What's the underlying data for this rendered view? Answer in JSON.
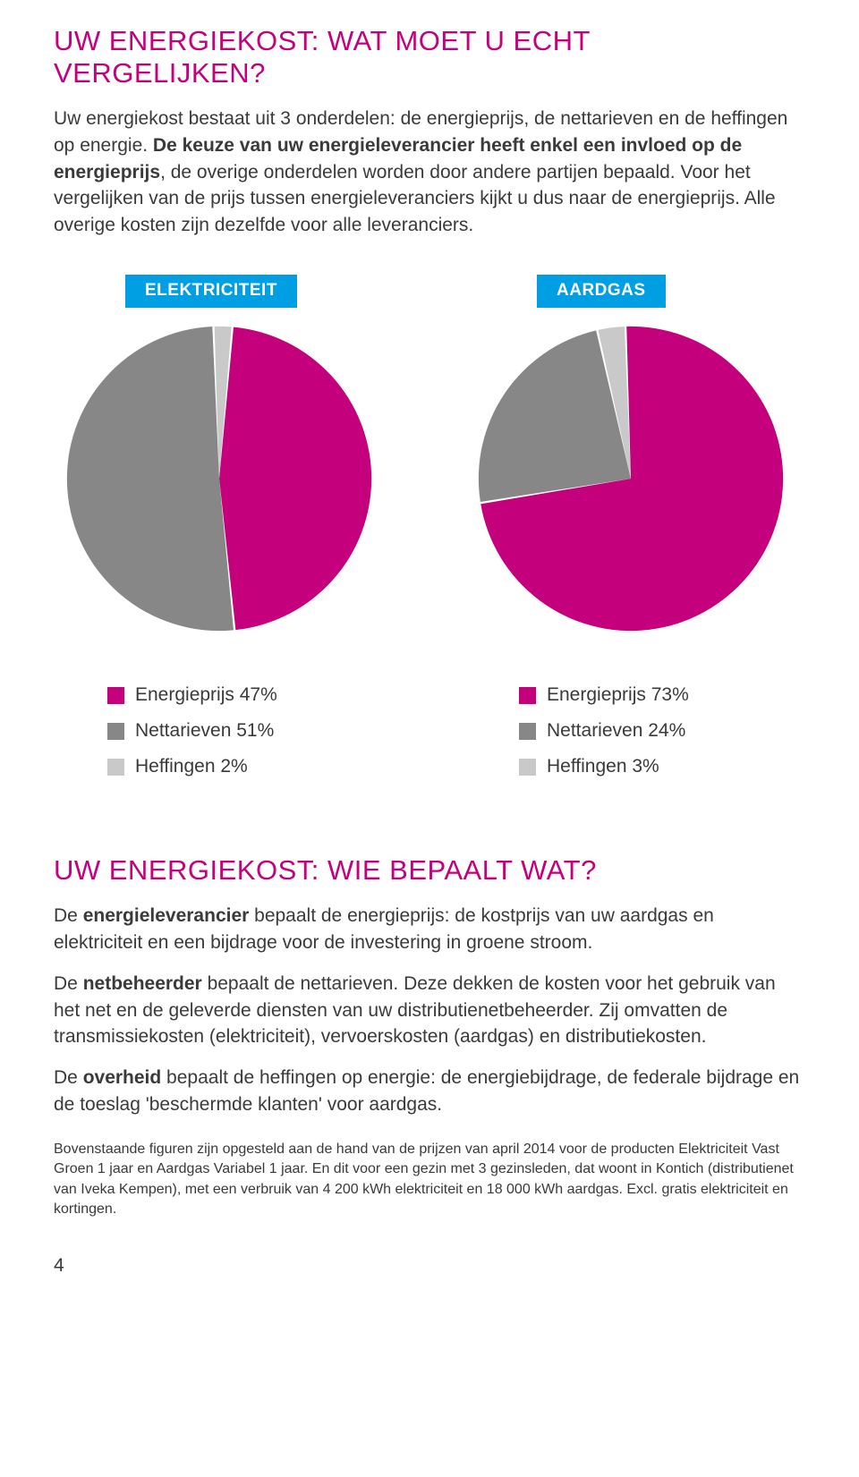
{
  "colors": {
    "magenta": "#c5007c",
    "grey_dark": "#878787",
    "grey_light": "#c9c9c9",
    "badge_blue": "#009fe3",
    "text": "#3a3a3a"
  },
  "section1": {
    "title": "UW ENERGIEKOST: WAT MOET U ECHT VERGELIJKEN?",
    "para_pre": "Uw energiekost bestaat uit 3 onderdelen: de energieprijs, de nettarieven en de heffingen op energie. ",
    "para_bold": "De keuze van uw energieleverancier heeft enkel een invloed op de energieprijs",
    "para_post": ", de overige onderdelen worden door andere partijen bepaald. Voor het vergelijken van de prijs tussen energieleveranciers kijkt u dus naar de energieprijs. Alle overige kosten zijn dezelfde voor alle leveranciers."
  },
  "charts": {
    "elek": {
      "badge": "ELEKTRICITEIT",
      "slices": [
        {
          "label": "Energieprijs 47%",
          "value": 47,
          "color": "#c5007c"
        },
        {
          "label": "Nettarieven 51%",
          "value": 51,
          "color": "#878787"
        },
        {
          "label": "Heffingen 2%",
          "value": 2,
          "color": "#c9c9c9"
        }
      ],
      "start_angle_deg": -85
    },
    "gas": {
      "badge": "AARDGAS",
      "slices": [
        {
          "label": "Energieprijs 73%",
          "value": 73,
          "color": "#c5007c"
        },
        {
          "label": "Nettarieven 24%",
          "value": 24,
          "color": "#878787"
        },
        {
          "label": "Heffingen 3%",
          "value": 3,
          "color": "#c9c9c9"
        }
      ],
      "start_angle_deg": -92
    },
    "radius": 175,
    "gap_deg": 0.8
  },
  "section2": {
    "title": "UW ENERGIEKOST: WIE BEPAALT WAT?",
    "p1_pre": "De ",
    "p1_bold": "energieleverancier",
    "p1_post": " bepaalt de energieprijs: de kostprijs van uw aardgas en elektriciteit en een bijdrage voor de investering in groene stroom.",
    "p2_pre": "De ",
    "p2_bold": "netbeheerder",
    "p2_post": " bepaalt de nettarieven. Deze dekken de kosten voor het gebruik van het net en de geleverde diensten van uw distributienetbeheerder. Zij omvatten de transmissiekosten (elektriciteit), vervoerskosten (aardgas) en distributiekosten.",
    "p3_pre": "De ",
    "p3_bold": "overheid",
    "p3_post": " bepaalt de heffingen op energie: de energiebijdrage, de federale bijdrage en de toeslag 'beschermde klanten' voor aardgas."
  },
  "footnote": "Bovenstaande figuren zijn opgesteld aan de hand van de prijzen van april 2014 voor de producten Elektriciteit Vast Groen 1 jaar en Aardgas Variabel 1 jaar. En dit voor een gezin met 3 gezinsleden, dat woont in Kontich (distributienet van Iveka Kempen), met een verbruik van 4 200 kWh elektriciteit en 18 000 kWh aardgas. Excl. gratis elektriciteit en kortingen.",
  "page_number": "4"
}
